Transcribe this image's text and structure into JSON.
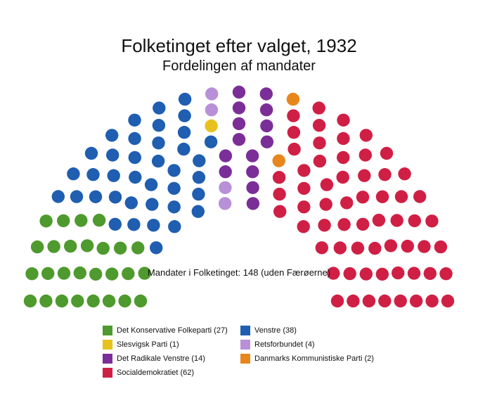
{
  "chart_data": {
    "type": "parliament",
    "title": "Folketinget efter valget, 1932",
    "subtitle": "Fordelingen af mandater",
    "total_label": "Mandater i Folketinget: 148 (uden Færøerne)",
    "total_seats": 148,
    "parties": [
      {
        "name": "Det Konservative Folkeparti",
        "seats": 27,
        "color": "#4e9a2e",
        "legend_label": "Det Konservative Folkeparti (27)"
      },
      {
        "name": "Venstre",
        "seats": 38,
        "color": "#1f5eb0",
        "legend_label": "Venstre (38)"
      },
      {
        "name": "Slesvigsk Parti",
        "seats": 1,
        "color": "#e8c21c",
        "legend_label": "Slesvigsk Parti (1)"
      },
      {
        "name": "Retsforbundet",
        "seats": 4,
        "color": "#b890d8",
        "legend_label": "Retsforbundet (4)"
      },
      {
        "name": "Det Radikale Venstre",
        "seats": 14,
        "color": "#7b2e98",
        "legend_label": "Det Radikale Venstre (14)"
      },
      {
        "name": "Danmarks Kommunistiske Parti",
        "seats": 2,
        "color": "#e8861c",
        "legend_label": "Danmarks Kommunistiske Parti (2)"
      },
      {
        "name": "Socialdemokratiet",
        "seats": 62,
        "color": "#d01f45",
        "legend_label": "Socialdemokratiet (62)"
      }
    ],
    "legend_order": [
      0,
      1,
      2,
      3,
      4,
      5,
      6
    ]
  }
}
